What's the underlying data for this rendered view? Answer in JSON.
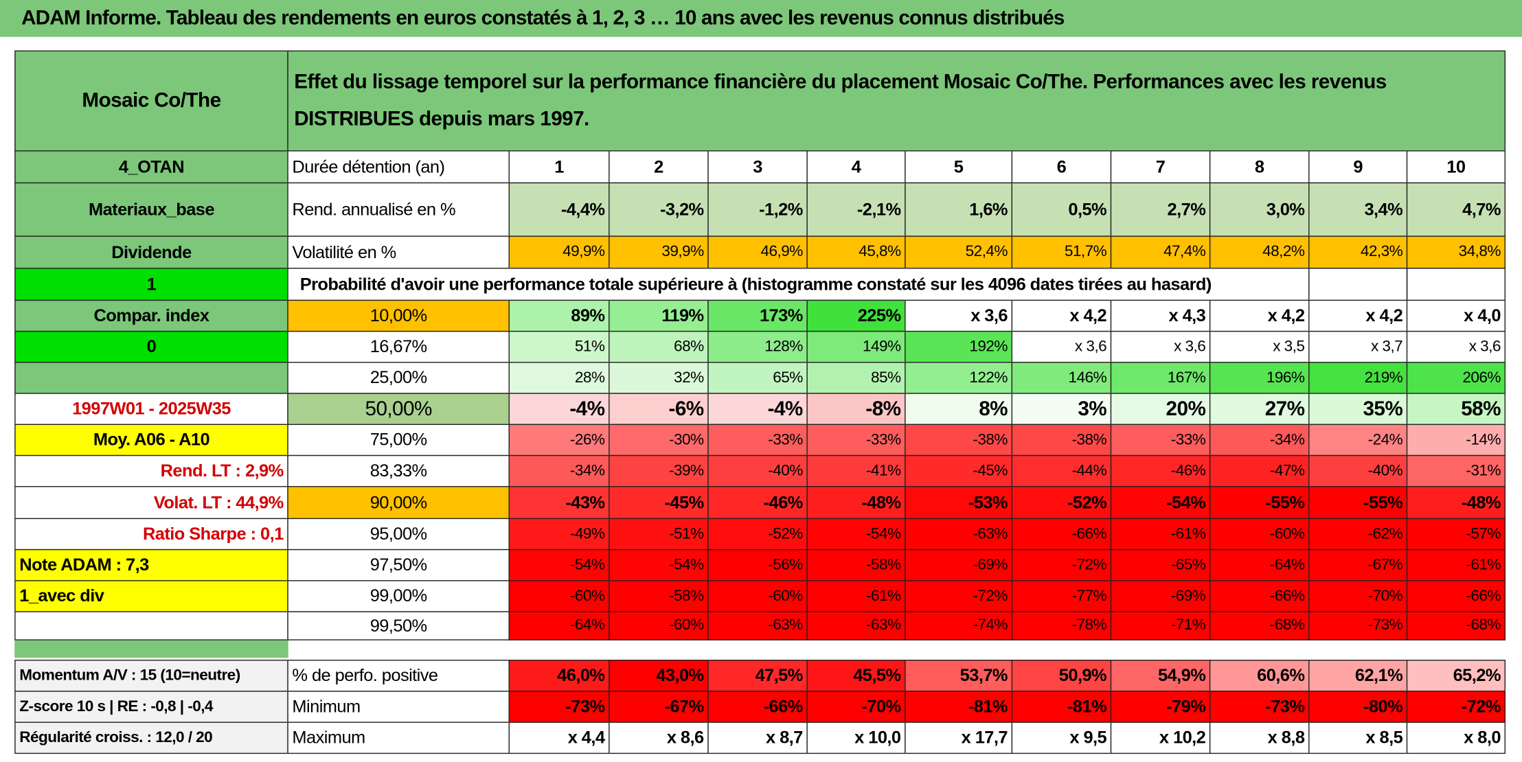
{
  "header": {
    "title": "ADAM Informe. Tableau des rendements en euros constatés à 1, 2, 3 … 10 ans avec les revenus connus distribués"
  },
  "table": {
    "corner": "Mosaic Co/The",
    "description": "Effet du lissage temporel sur la performance financière du placement Mosaic Co/The. Performances avec les revenus DISTRIBUES depuis mars 1997.",
    "rows": [
      {
        "side": "4_OTAN",
        "label": "Durée détention (an)",
        "cells": [
          1,
          2,
          3,
          4,
          5,
          6,
          7,
          8,
          9,
          10
        ]
      },
      {
        "side": "Materiaux_base",
        "label": "Rend. annualisé en %",
        "cells": [
          "-4,4%",
          "-3,2%",
          "-1,2%",
          "-2,1%",
          "1,6%",
          "0,5%",
          "2,7%",
          "3,0%",
          "3,4%",
          "4,7%"
        ]
      },
      {
        "side": "Dividende",
        "label": "Volatilité en %",
        "cells": [
          "49,9%",
          "39,9%",
          "46,9%",
          "45,8%",
          "52,4%",
          "51,7%",
          "47,4%",
          "48,2%",
          "42,3%",
          "34,8%"
        ]
      },
      {
        "side": "1",
        "label": "Probabilité d'avoir une performance totale supérieure à (histogramme constaté sur les 4096 dates tirées au hasard)"
      },
      {
        "side": "Compar. index",
        "label": "10,00%",
        "cells": [
          "89%",
          "119%",
          "173%",
          "225%",
          "x 3,6",
          "x 4,2",
          "x 4,3",
          "x 4,2",
          "x 4,2",
          "x 4,0"
        ]
      },
      {
        "side": "0",
        "label": "16,67%",
        "cells": [
          "51%",
          "68%",
          "128%",
          "149%",
          "192%",
          "x 3,6",
          "x 3,6",
          "x 3,5",
          "x 3,7",
          "x 3,6"
        ]
      },
      {
        "label": "25,00%",
        "cells": [
          "28%",
          "32%",
          "65%",
          "85%",
          "122%",
          "146%",
          "167%",
          "196%",
          "219%",
          "206%"
        ]
      },
      {
        "side": "1997W01 - 2025W35",
        "label": "50,00%",
        "cells": [
          "-4%",
          "-6%",
          "-4%",
          "-8%",
          "8%",
          "3%",
          "20%",
          "27%",
          "35%",
          "58%"
        ]
      },
      {
        "side": "Moy. A06 - A10",
        "label": "75,00%",
        "cells": [
          "-26%",
          "-30%",
          "-33%",
          "-33%",
          "-38%",
          "-38%",
          "-33%",
          "-34%",
          "-24%",
          "-14%"
        ]
      },
      {
        "side": "Rend. LT :   2,9%",
        "label": "83,33%",
        "cells": [
          "-34%",
          "-39%",
          "-40%",
          "-41%",
          "-45%",
          "-44%",
          "-46%",
          "-47%",
          "-40%",
          "-31%"
        ]
      },
      {
        "side": "Volat. LT :   44,9%",
        "label": "90,00%",
        "cells": [
          "-43%",
          "-45%",
          "-46%",
          "-48%",
          "-53%",
          "-52%",
          "-54%",
          "-55%",
          "-55%",
          "-48%"
        ]
      },
      {
        "side": "Ratio Sharpe :   0,1",
        "label": "95,00%",
        "cells": [
          "-49%",
          "-51%",
          "-52%",
          "-54%",
          "-63%",
          "-66%",
          "-61%",
          "-60%",
          "-62%",
          "-57%"
        ]
      },
      {
        "side": "Note ADAM : 7,3",
        "label": "97,50%",
        "cells": [
          "-54%",
          "-54%",
          "-56%",
          "-58%",
          "-69%",
          "-72%",
          "-65%",
          "-64%",
          "-67%",
          "-61%"
        ]
      },
      {
        "side": "1_avec div",
        "label": "99,00%",
        "cells": [
          "-60%",
          "-58%",
          "-60%",
          "-61%",
          "-72%",
          "-77%",
          "-69%",
          "-66%",
          "-70%",
          "-66%"
        ]
      },
      {
        "label": "99,50%",
        "cells": [
          "-64%",
          "-60%",
          "-63%",
          "-63%",
          "-74%",
          "-78%",
          "-71%",
          "-68%",
          "-73%",
          "-68%"
        ]
      },
      {
        "side": "Momentum A/V : 15 (10=neutre)",
        "label": "% de perfo. positive",
        "cells": [
          "46,0%",
          "43,0%",
          "47,5%",
          "45,5%",
          "53,7%",
          "50,9%",
          "54,9%",
          "60,6%",
          "62,1%",
          "65,2%"
        ]
      },
      {
        "side": "Z-score 10 s | RE : -0,8 | -0,4",
        "label": "Minimum",
        "cells": [
          "-73%",
          "-67%",
          "-66%",
          "-70%",
          "-81%",
          "-81%",
          "-79%",
          "-73%",
          "-80%",
          "-72%"
        ]
      },
      {
        "side": "Régularité croiss. : 12,0 / 20",
        "label": "Maximum",
        "cells": [
          "x 4,4",
          "x 8,6",
          "x 8,7",
          "x 10,0",
          "x 17,7",
          "x 9,5",
          "x 10,2",
          "x 8,8",
          "x 8,5",
          "x 8,0"
        ]
      }
    ]
  }
}
